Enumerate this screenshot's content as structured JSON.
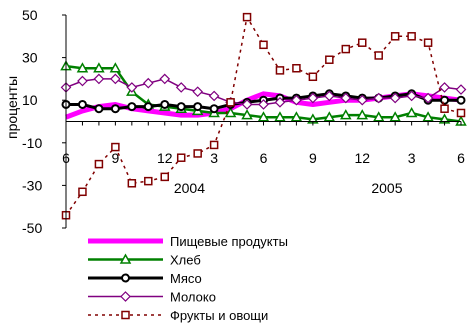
{
  "chart_data": {
    "type": "line",
    "ylabel": "проценты",
    "ylim": [
      -50,
      50
    ],
    "yticks": [
      "50",
      "30",
      "10",
      "-10",
      "-30",
      "-50"
    ],
    "ytick_values": [
      50,
      30,
      10,
      -10,
      -30,
      -50
    ],
    "x_month_labels": [
      "6",
      "9",
      "12",
      "3",
      "6",
      "9",
      "12",
      "3",
      "6"
    ],
    "x_month_index": [
      0,
      3,
      6,
      9,
      12,
      15,
      18,
      21,
      24
    ],
    "x_year_labels": [
      {
        "label": "2004",
        "at": 7.5
      },
      {
        "label": "2005",
        "at": 19.5
      }
    ],
    "x_count": 25,
    "legend_position": "bottom-left",
    "series": [
      {
        "name": "Пищевые продукты",
        "color": "#ff00ff",
        "marker": "none",
        "dash": "solid",
        "width": 5,
        "values": [
          2,
          5,
          7,
          8,
          6,
          5,
          4,
          3,
          3,
          4,
          6,
          10,
          13,
          12,
          9,
          8,
          9,
          10,
          10,
          11,
          12,
          13,
          12,
          11,
          10
        ]
      },
      {
        "name": "Хлеб",
        "color": "#008000",
        "marker": "triangle",
        "dash": "solid",
        "width": 2.5,
        "values": [
          26,
          25,
          25,
          25,
          14,
          8,
          7,
          6,
          5,
          4,
          4,
          3,
          2,
          2,
          2,
          1,
          2,
          3,
          3,
          2,
          2,
          4,
          2,
          1,
          0
        ]
      },
      {
        "name": "Мясо",
        "color": "#000000",
        "marker": "circle",
        "dash": "solid",
        "width": 3,
        "values": [
          8,
          8,
          6,
          6,
          7,
          7,
          8,
          7,
          7,
          6,
          8,
          9,
          10,
          11,
          11,
          12,
          13,
          12,
          11,
          11,
          12,
          13,
          10,
          10,
          10
        ]
      },
      {
        "name": "Молоко",
        "color": "#800080",
        "marker": "diamond",
        "dash": "solid",
        "width": 1.5,
        "values": [
          16,
          19,
          20,
          20,
          16,
          18,
          20,
          16,
          14,
          12,
          9,
          8,
          8,
          9,
          10,
          11,
          12,
          11,
          10,
          11,
          11,
          12,
          11,
          16,
          15
        ]
      },
      {
        "name": "Фрукты и овощи",
        "color": "#800000",
        "marker": "square",
        "dash": "dashed",
        "width": 1.5,
        "values": [
          -44,
          -33,
          -20,
          -12,
          -29,
          -28,
          -26,
          -17,
          -15,
          -11,
          9,
          49,
          36,
          24,
          25,
          21,
          29,
          34,
          37,
          31,
          40,
          40,
          37,
          6,
          4
        ]
      }
    ]
  }
}
